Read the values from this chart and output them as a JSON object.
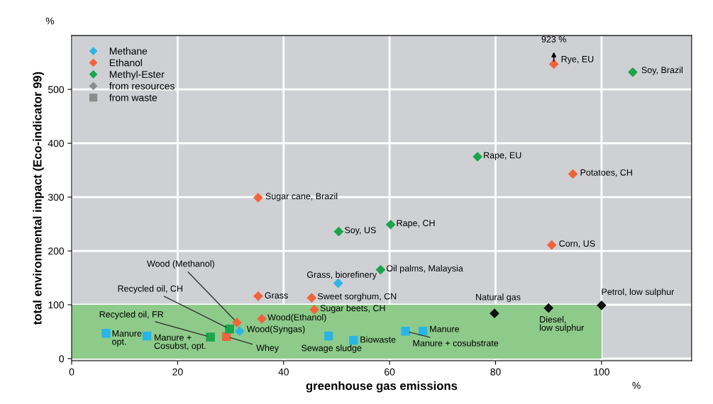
{
  "chart_data": {
    "type": "scatter",
    "xlabel": "greenhouse gas emissions",
    "ylabel": "total environmental impact (Eco-indicator 99)",
    "xlim": [
      0,
      117
    ],
    "ylim": [
      -4,
      600
    ],
    "xticks": [
      0,
      20,
      40,
      60,
      80,
      100
    ],
    "yticks": [
      0,
      100,
      200,
      300,
      400,
      500
    ],
    "grid": true,
    "legend": "top left",
    "bands": [
      {
        "axis": "y",
        "from": 0,
        "to": 100,
        "color": "#8ecb8a"
      }
    ],
    "series": [
      {
        "name": "Methane",
        "color": "#2bb5e6",
        "marker": "diamond",
        "x": [
          50.3,
          31.7
        ],
        "values": [
          140,
          51
        ]
      },
      {
        "name": "Ethanol",
        "color": "#f0643c",
        "marker": "diamond",
        "x": [
          91,
          94.6,
          35.2,
          90.6,
          35.2,
          45.3,
          45.8,
          35.9,
          31.2
        ],
        "values": [
          547,
          343,
          299,
          211,
          116,
          113,
          91,
          74,
          67
        ]
      },
      {
        "name": "Methyl-Ester",
        "color": "#1aa54a",
        "marker": "diamond",
        "x": [
          105.9,
          76.6,
          60.2,
          50.4,
          58.3
        ],
        "values": [
          532,
          375,
          249,
          236,
          165
        ]
      },
      {
        "color": "#2bb5e6",
        "marker": "square",
        "x": [
          6.5,
          14.2,
          48.5,
          53.2,
          63,
          66.3
        ],
        "values": [
          47,
          42,
          42,
          34,
          51,
          51
        ]
      },
      {
        "color": "#f0643c",
        "marker": "square",
        "x": [
          29.2
        ],
        "values": [
          41
        ]
      },
      {
        "color": "#1aa54a",
        "marker": "square",
        "x": [
          29.8,
          26.2
        ],
        "values": [
          55,
          40
        ]
      },
      {
        "color": "#111111",
        "marker": "diamond",
        "x": [
          79.8,
          90.0,
          100
        ],
        "values": [
          84,
          94,
          99
        ]
      },
      {
        "name": "from resources",
        "color": "#8c8c8c",
        "marker": "diamond"
      },
      {
        "name": "from waste",
        "color": "#8c8c8c",
        "marker": "square"
      }
    ],
    "annotations": [
      "%",
      "%",
      {
        "text": "923 %",
        "x": 91,
        "y": 547
      },
      {
        "text": "Rye, EU",
        "x": 91,
        "y": 547
      },
      {
        "text": "Soy, Brazil",
        "x": 105.9,
        "y": 532
      },
      {
        "text": "Rape, EU",
        "x": 76.6,
        "y": 375
      },
      {
        "text": "Potatoes, CH",
        "x": 94.6,
        "y": 343
      },
      {
        "text": "Sugar cane, Brazil",
        "x": 35.2,
        "y": 299
      },
      {
        "text": "Rape, CH",
        "x": 60.2,
        "y": 249
      },
      {
        "text": "Soy, US",
        "x": 50.4,
        "y": 236
      },
      {
        "text": "Corn, US",
        "x": 90.6,
        "y": 211
      },
      {
        "text": "Oil palms, Malaysia",
        "x": 58.3,
        "y": 165
      },
      {
        "text": "Grass, biorefinery",
        "x": 50.3,
        "y": 140
      },
      {
        "text": "Grass",
        "x": 35.2,
        "y": 116
      },
      {
        "text": "Sweet sorghum, CN",
        "x": 45.3,
        "y": 113
      },
      {
        "text": "Sugar beets, CH",
        "x": 45.8,
        "y": 91
      },
      {
        "text": "Wood(Ethanol)",
        "x": 35.9,
        "y": 74
      },
      {
        "text": "Wood (Methanol)",
        "x": 31.2,
        "y": 67
      },
      {
        "text": "Recycled oil, CH",
        "x": 29.8,
        "y": 55
      },
      {
        "text": "Recycled oil, FR",
        "x": 26.2,
        "y": 40
      },
      {
        "text": "Wood(Syngas)",
        "x": 31.7,
        "y": 51
      },
      {
        "text": "Whey",
        "x": 29.2,
        "y": 41
      },
      {
        "text": "Manure\nopt.",
        "x": 6.5,
        "y": 47
      },
      {
        "text": "Manure +\nCosubst, opt.",
        "x": 14.2,
        "y": 42
      },
      {
        "text": "Sewage sludge",
        "x": 48.5,
        "y": 42
      },
      {
        "text": "Biowaste",
        "x": 53.2,
        "y": 34
      },
      {
        "text": "Manure + cosubstrate",
        "x": 63,
        "y": 51
      },
      {
        "text": "Manure",
        "x": 66.3,
        "y": 51
      },
      {
        "text": "Natural gas",
        "x": 79.8,
        "y": 84
      },
      {
        "text": "Diesel,\nlow sulphur",
        "x": 90.0,
        "y": 94
      },
      {
        "text": "Petrol, low sulphur",
        "x": 100,
        "y": 99
      }
    ]
  }
}
